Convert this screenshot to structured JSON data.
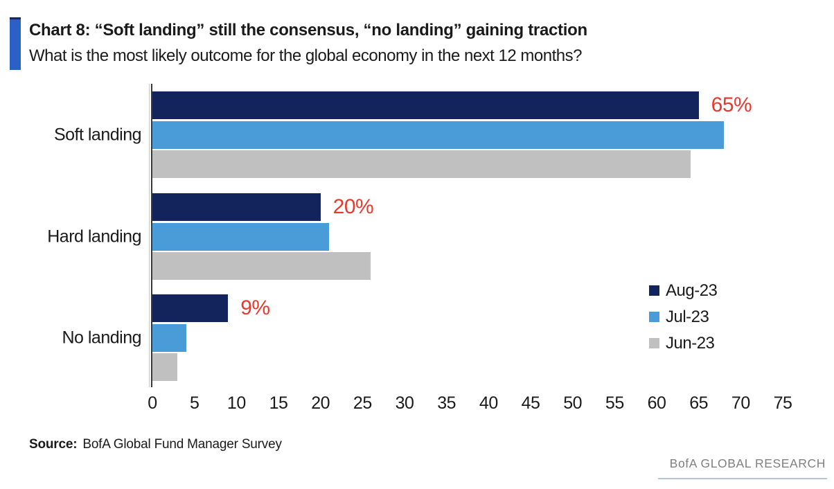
{
  "header": {
    "title": "Chart 8: “Soft landing” still the consensus, “no landing” gaining traction",
    "subtitle": "What is the most likely outcome for the global economy in the next 12 months?"
  },
  "chart_data": {
    "type": "bar",
    "orientation": "horizontal",
    "title": "Chart 8: “Soft landing” still the consensus, “no landing” gaining traction",
    "subtitle": "What is the most likely outcome for the global economy in the next 12 months?",
    "categories": [
      "Soft landing",
      "Hard landing",
      "No landing"
    ],
    "series": [
      {
        "name": "Aug-23",
        "color": "#13245c",
        "values": [
          65,
          20,
          9
        ]
      },
      {
        "name": "Jul-23",
        "color": "#4a9cd9",
        "values": [
          68,
          21,
          4
        ]
      },
      {
        "name": "Jun-23",
        "color": "#c0c0c1",
        "values": [
          64,
          26,
          3
        ]
      }
    ],
    "data_labels": [
      {
        "category_index": 0,
        "series": "Aug-23",
        "text": "65%"
      },
      {
        "category_index": 1,
        "series": "Aug-23",
        "text": "20%"
      },
      {
        "category_index": 2,
        "series": "Aug-23",
        "text": "9%"
      }
    ],
    "data_label_color": "#e8392d",
    "xlim": [
      0,
      75
    ],
    "x_ticks": [
      0,
      5,
      10,
      15,
      20,
      25,
      30,
      35,
      40,
      45,
      50,
      55,
      60,
      65,
      70,
      75
    ],
    "grid": false,
    "legend_position": "middle-right"
  },
  "footer": {
    "source_label": "Source:",
    "source_text": "BofA Global Fund Manager Survey",
    "brand": "BofA GLOBAL RESEARCH"
  },
  "colors": {
    "accent_blue": "#2c60c4",
    "series_aug": "#13245c",
    "series_jul": "#4a9cd9",
    "series_jun": "#c0c0c1",
    "data_label_red": "#e8392d",
    "axis": "#3a3a3a",
    "brand_gray": "#7f7f7f"
  }
}
